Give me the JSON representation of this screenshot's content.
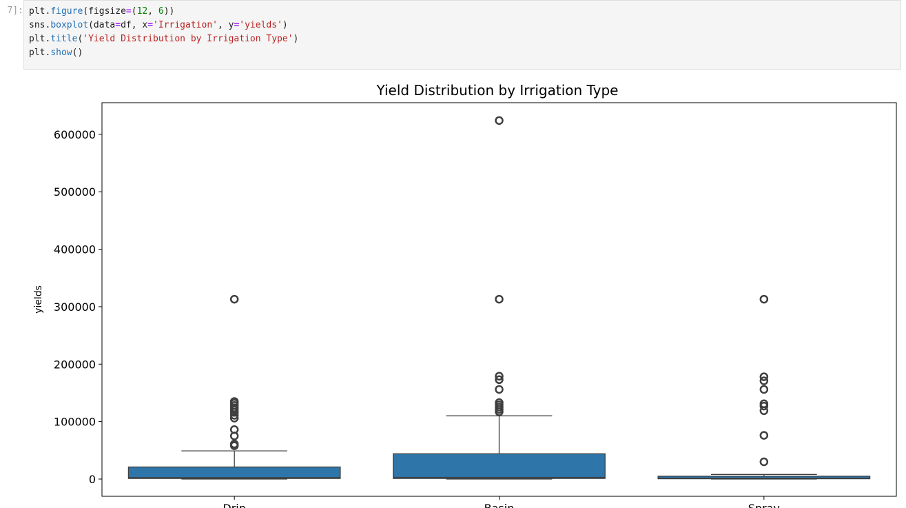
{
  "cell": {
    "prompt": "7]:",
    "code_lines": [
      [
        {
          "t": "plt."
        },
        {
          "t": "figure",
          "c": "fn"
        },
        {
          "t": "(figsize"
        },
        {
          "t": "=",
          "c": "op"
        },
        {
          "t": "("
        },
        {
          "t": "12",
          "c": "num"
        },
        {
          "t": ", "
        },
        {
          "t": "6",
          "c": "num"
        },
        {
          "t": "))"
        }
      ],
      [
        {
          "t": "sns."
        },
        {
          "t": "boxplot",
          "c": "fn"
        },
        {
          "t": "(data"
        },
        {
          "t": "=",
          "c": "op"
        },
        {
          "t": "df, x"
        },
        {
          "t": "=",
          "c": "op"
        },
        {
          "t": "'Irrigation'",
          "c": "str"
        },
        {
          "t": ", y"
        },
        {
          "t": "=",
          "c": "op"
        },
        {
          "t": "'yields'",
          "c": "str"
        },
        {
          "t": ")"
        }
      ],
      [
        {
          "t": "plt."
        },
        {
          "t": "title",
          "c": "fn"
        },
        {
          "t": "("
        },
        {
          "t": "'Yield Distribution by Irrigation Type'",
          "c": "str"
        },
        {
          "t": ")"
        }
      ],
      [
        {
          "t": "plt."
        },
        {
          "t": "show",
          "c": "fn"
        },
        {
          "t": "()"
        }
      ]
    ]
  },
  "chart_data": {
    "type": "box",
    "title": "Yield Distribution by Irrigation Type",
    "xlabel": "",
    "ylabel": "yields",
    "ylim": [
      -30000,
      655000
    ],
    "yticks": [
      0,
      100000,
      200000,
      300000,
      400000,
      500000,
      600000
    ],
    "ytick_labels": [
      "0",
      "100000",
      "200000",
      "300000",
      "400000",
      "500000",
      "600000"
    ],
    "categories": [
      "Drip",
      "Basin",
      "Spray"
    ],
    "box_color": "#2e75a9",
    "boxes": [
      {
        "category": "Drip",
        "whisker_low": 0,
        "q1": 1000,
        "median": 2500,
        "q3": 21000,
        "whisker_high": 49000,
        "outliers": [
          58000,
          61000,
          75000,
          86000,
          106000,
          111000,
          116000,
          120000,
          124000,
          128000,
          132000,
          135000,
          313000
        ]
      },
      {
        "category": "Basin",
        "whisker_low": 0,
        "q1": 1000,
        "median": 3000,
        "q3": 44000,
        "whisker_high": 110000,
        "outliers": [
          117000,
          121000,
          125000,
          129000,
          133000,
          156000,
          173000,
          179000,
          313000,
          624000
        ]
      },
      {
        "category": "Spray",
        "whisker_low": 0,
        "q1": 500,
        "median": 1500,
        "q3": 5000,
        "whisker_high": 8000,
        "outliers": [
          30000,
          76000,
          119000,
          127000,
          131000,
          156000,
          171000,
          178000,
          313000
        ]
      }
    ]
  }
}
